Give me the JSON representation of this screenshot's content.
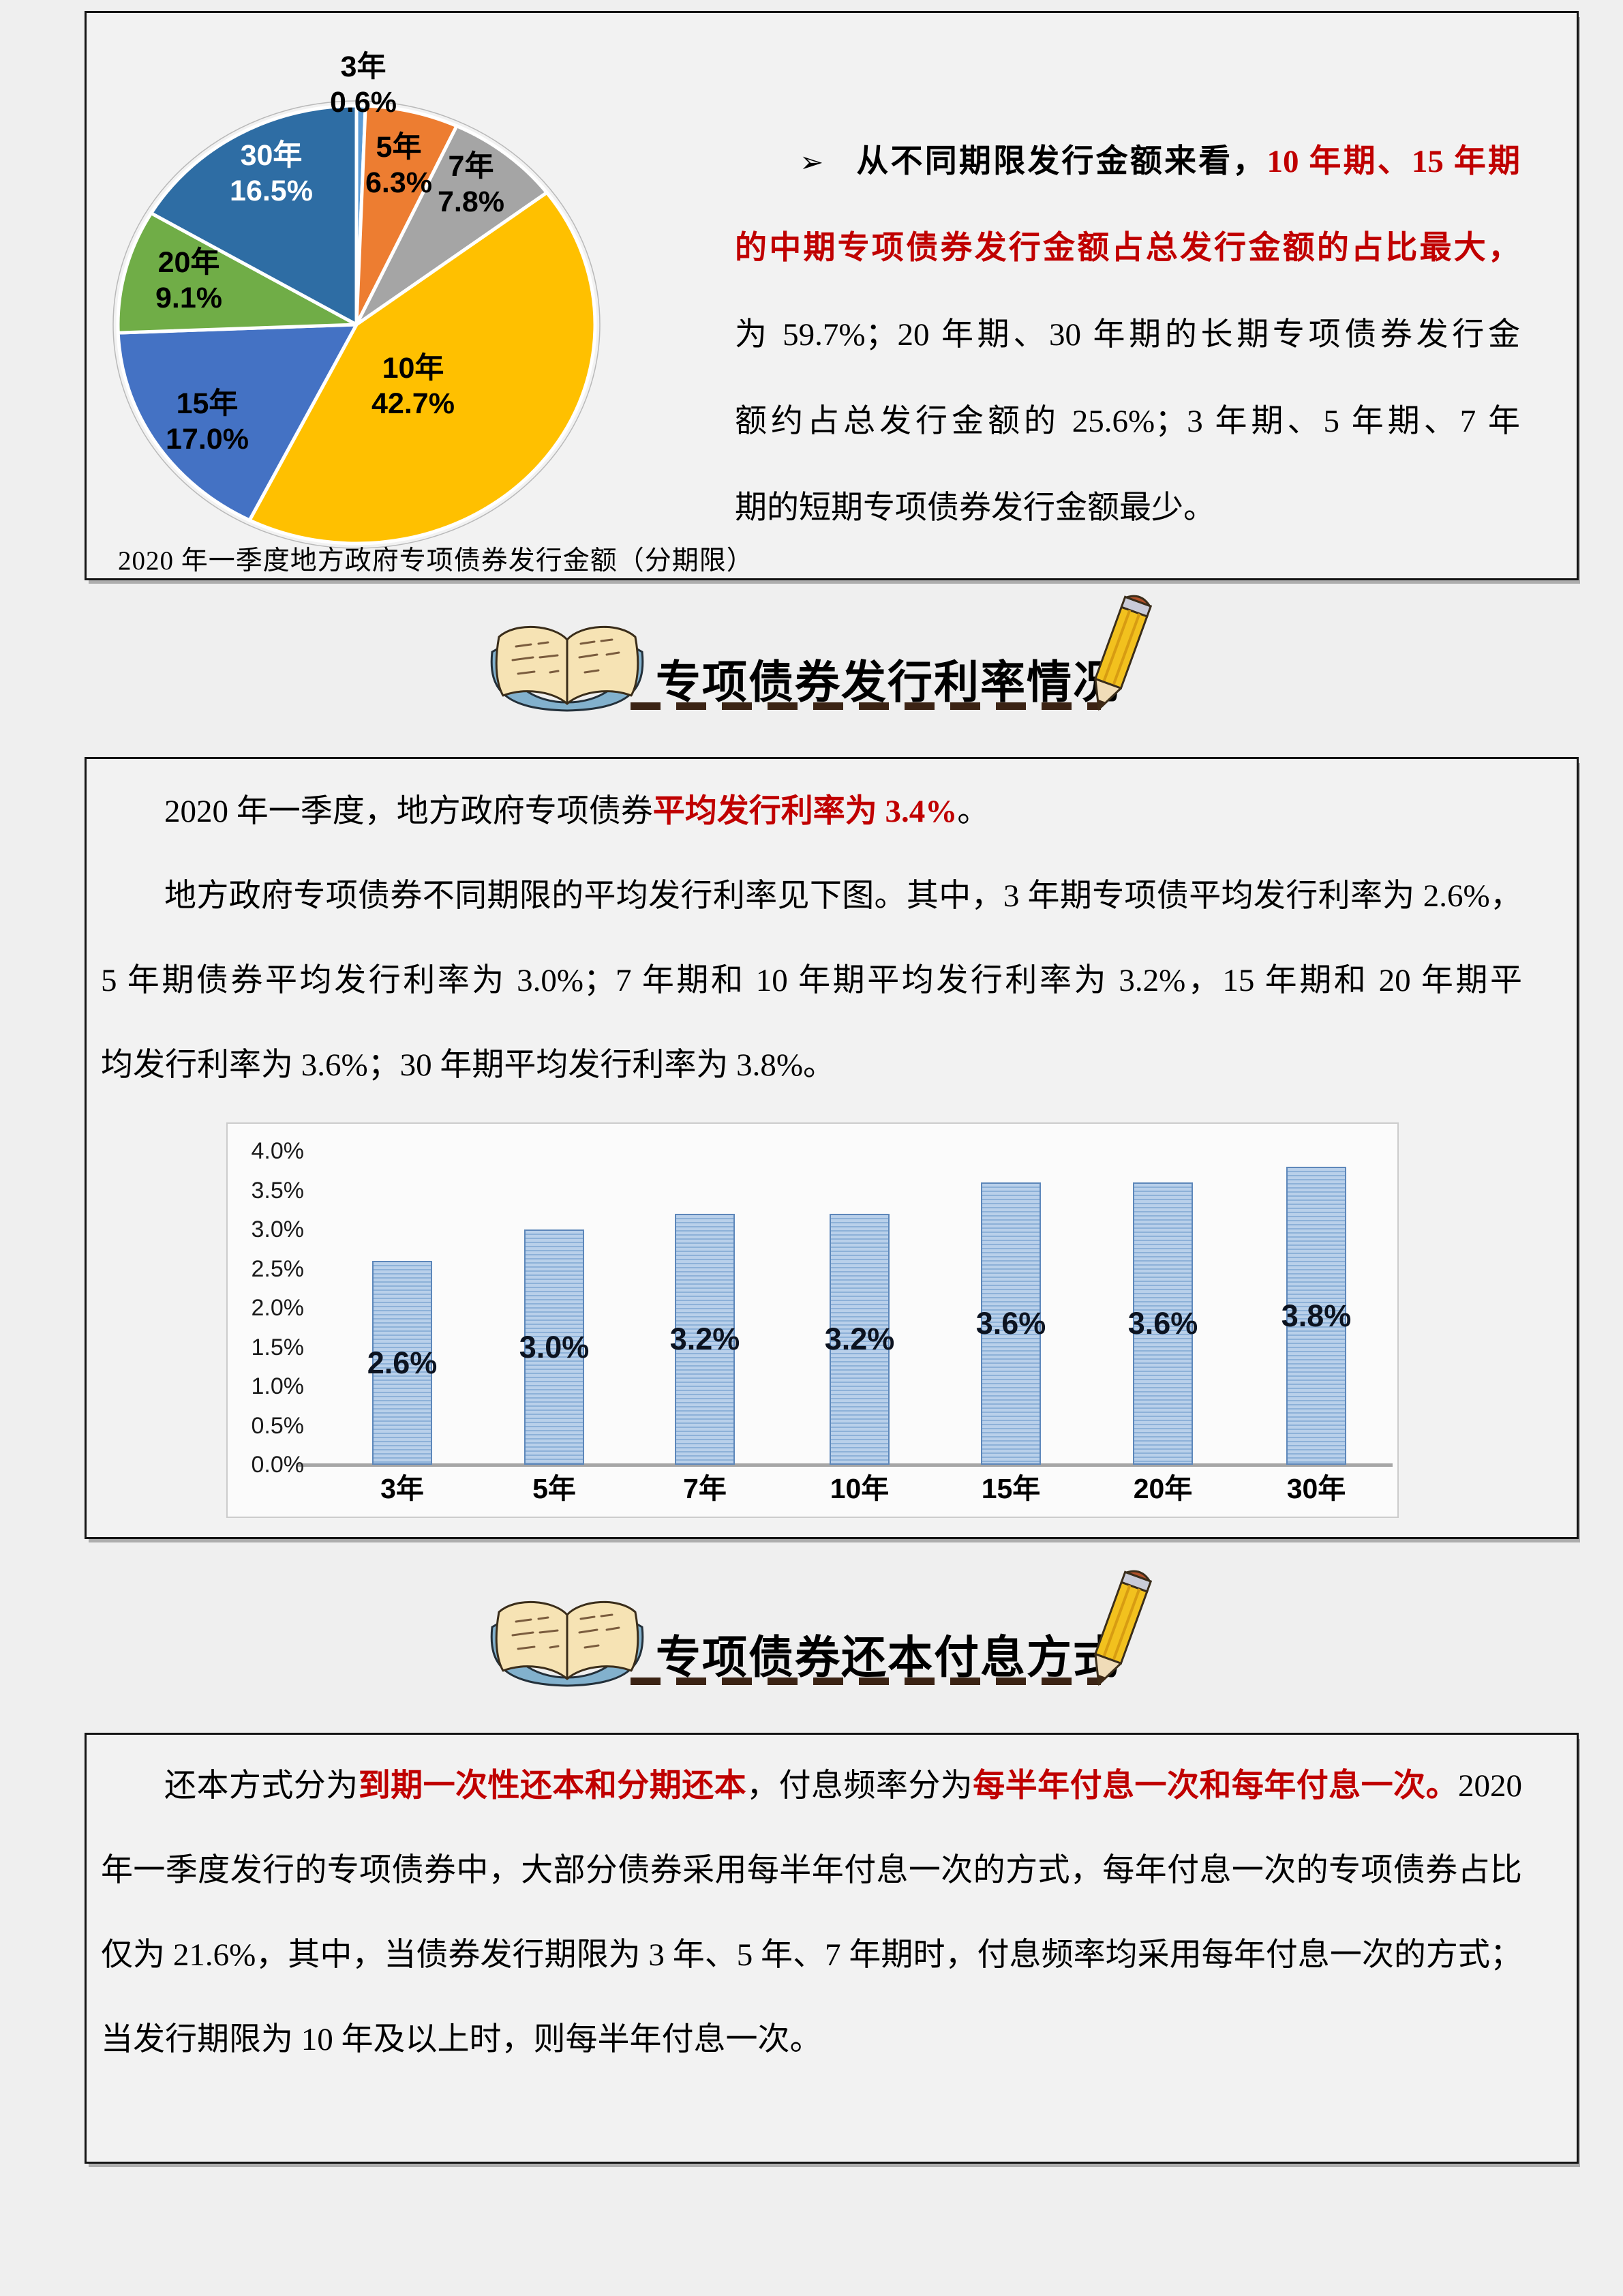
{
  "box1": {
    "caption": "2020 年一季度地方政府专项债券发行金额（分期限）",
    "right_text": {
      "bullet": "➢",
      "l1_black": "从不同期限发行金额来看，",
      "l1_red": "10 年期、15 年期",
      "l2_red": "的中期专项债券发行金额占总发行金额的占比最大，",
      "l3": "为 59.7%；20 年期、30 年期的长期专项债券发行金",
      "l4": "额约占总发行金额的 25.6%；3 年期、5 年期、7 年",
      "l5": "期的短期专项债券发行金额最少。"
    }
  },
  "headers": [
    {
      "title": "专项债券发行利率情况"
    },
    {
      "title": "专项债券还本付息方式"
    }
  ],
  "box2": {
    "l1_a": "2020 年一季度，地方政府专项债券",
    "l1_red": "平均发行利率为 3.4%",
    "l1_b": "。",
    "l2": "地方政府专项债券不同期限的平均发行利率见下图。其中，3 年期专项债平均发行利率为 2.6%，",
    "l3": "5 年期债券平均发行利率为 3.0%；7 年期和 10 年期平均发行利率为 3.2%，15 年期和 20 年期平",
    "l4": "均发行利率为 3.6%；30 年期平均发行利率为 3.8%。"
  },
  "box3": {
    "l1_a": "还本方式分为",
    "l1_red1": "到期一次性还本和分期还本",
    "l1_b": "，付息频率分为",
    "l1_red2": "每半年付息一次和每年付息一次。",
    "l1_c": "2020",
    "l2": "年一季度发行的专项债券中，大部分债券采用每半年付息一次的方式，每年付息一次的专项债券占比",
    "l3": "仅为 21.6%，其中，当债券发行期限为 3 年、5 年、7 年期时，付息频率均采用每年付息一次的方式；",
    "l4": "当发行期限为 10 年及以上时，则每半年付息一次。"
  },
  "colors": {
    "accent_red": "#C00000",
    "page_background": "#efefef",
    "bar_fill_light": "#b9d0ea",
    "bar_fill_dark": "#8db1d8",
    "bar_border": "#5d87ba"
  },
  "chart_data": [
    {
      "type": "pie",
      "title": "2020 年一季度地方政府专项债券发行金额（分期限）",
      "categories": [
        "3年",
        "5年",
        "7年",
        "10年",
        "15年",
        "20年",
        "30年"
      ],
      "values": [
        0.6,
        6.3,
        7.8,
        42.7,
        17.0,
        9.1,
        16.5
      ],
      "unit": "%",
      "colors": [
        "#5B9BD5",
        "#ED7D31",
        "#A5A5A5",
        "#FFC000",
        "#4472C4",
        "#70AD47",
        "#2E6DA4"
      ],
      "label_colors": [
        "#000000",
        "#000000",
        "#000000",
        "#000000",
        "#000000",
        "#000000",
        "#FFFFFF"
      ],
      "start_angle_deg": 0,
      "direction": "clockwise",
      "legend_position": "none"
    },
    {
      "type": "bar",
      "categories": [
        "3年",
        "5年",
        "7年",
        "10年",
        "15年",
        "20年",
        "30年"
      ],
      "values": [
        2.6,
        3.0,
        3.2,
        3.2,
        3.6,
        3.6,
        3.8
      ],
      "unit": "%",
      "ylim": [
        0,
        4.0
      ],
      "ytick_step": 0.5,
      "grid": false,
      "legend_position": "none",
      "xlabel": "",
      "ylabel": ""
    }
  ]
}
